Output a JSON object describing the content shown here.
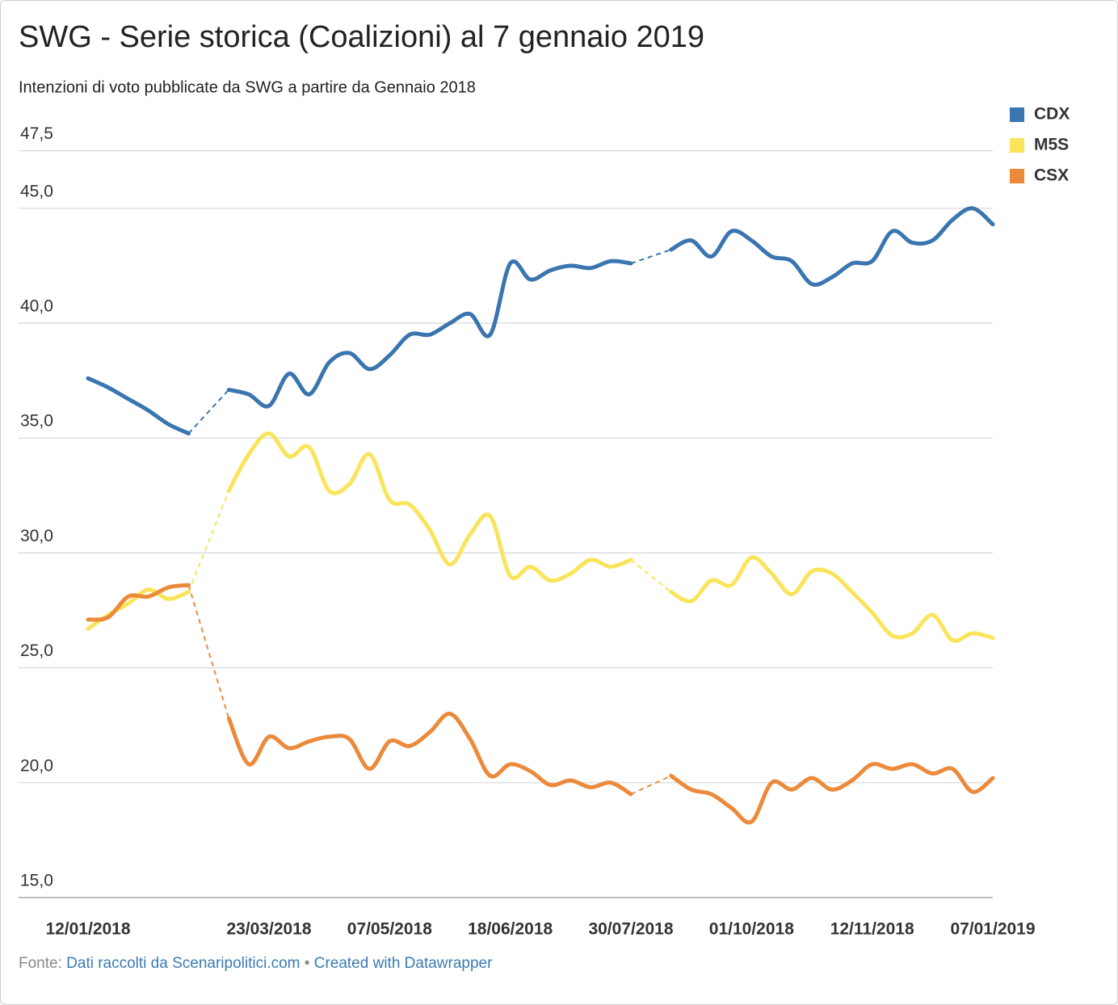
{
  "chart_data": {
    "type": "line",
    "title": "SWG - Serie storica (Coalizioni) al 7 gennaio 2019",
    "subtitle": "Intenzioni di voto pubblicate da SWG a partire da Gennaio 2018",
    "categories": [
      "12/01/2018",
      null,
      null,
      null,
      null,
      null,
      null,
      null,
      null,
      "23/03/2018",
      null,
      null,
      null,
      null,
      null,
      "07/05/2018",
      null,
      null,
      null,
      null,
      null,
      "18/06/2018",
      null,
      null,
      null,
      null,
      null,
      "30/07/2018",
      null,
      null,
      null,
      null,
      null,
      "01/10/2018",
      null,
      null,
      null,
      null,
      null,
      "12/11/2018",
      null,
      null,
      null,
      null,
      null,
      "07/01/2019"
    ],
    "series": [
      {
        "name": "CDX",
        "color": "#3a75b0",
        "values": [
          37.6,
          37.2,
          36.7,
          36.2,
          35.6,
          35.2,
          null,
          37.1,
          36.9,
          36.4,
          37.8,
          36.9,
          38.3,
          38.7,
          38.0,
          38.6,
          39.5,
          39.5,
          40.0,
          40.4,
          39.5,
          42.6,
          41.9,
          42.3,
          42.5,
          42.4,
          42.7,
          42.6,
          null,
          43.2,
          43.6,
          42.9,
          44.0,
          43.6,
          42.9,
          42.7,
          41.7,
          42.0,
          42.6,
          42.7,
          44.0,
          43.5,
          43.6,
          44.5,
          45.0,
          44.3
        ]
      },
      {
        "name": "M5S",
        "color": "#f9e45b",
        "values": [
          26.7,
          27.3,
          27.8,
          28.4,
          28.0,
          28.3,
          null,
          32.7,
          34.3,
          35.2,
          34.2,
          34.6,
          32.7,
          33.0,
          34.3,
          32.3,
          32.1,
          31.0,
          29.5,
          30.8,
          31.6,
          29.0,
          29.4,
          28.8,
          29.1,
          29.7,
          29.4,
          29.7,
          null,
          28.3,
          27.9,
          28.8,
          28.6,
          29.8,
          29.1,
          28.2,
          29.2,
          29.1,
          28.3,
          27.4,
          26.4,
          26.5,
          27.3,
          26.2,
          26.5,
          26.3
        ]
      },
      {
        "name": "CSX",
        "color": "#ec8a3c",
        "values": [
          27.1,
          27.2,
          28.1,
          28.1,
          28.5,
          28.6,
          null,
          22.8,
          20.8,
          22.0,
          21.5,
          21.8,
          22.0,
          21.9,
          20.6,
          21.8,
          21.6,
          22.2,
          23.0,
          21.9,
          20.3,
          20.8,
          20.5,
          19.9,
          20.1,
          19.8,
          20.0,
          19.5,
          null,
          20.3,
          19.7,
          19.5,
          18.9,
          18.3,
          20.0,
          19.7,
          20.2,
          19.7,
          20.1,
          20.8,
          20.6,
          20.8,
          20.4,
          20.6,
          19.6,
          20.2
        ]
      }
    ],
    "ylim": [
      15,
      47.5
    ],
    "yticks": [
      {
        "value": 15,
        "label": "15,0"
      },
      {
        "value": 20,
        "label": "20,0"
      },
      {
        "value": 25,
        "label": "25,0"
      },
      {
        "value": 30,
        "label": "30,0"
      },
      {
        "value": 35,
        "label": "35,0"
      },
      {
        "value": 40,
        "label": "40,0"
      },
      {
        "value": 45,
        "label": "45,0"
      },
      {
        "value": 47.5,
        "label": "47,5"
      }
    ],
    "grid": true,
    "legend": "top-right",
    "source": {
      "label": "Fonte:",
      "text": "Dati raccolti da Scenaripolitici.com",
      "separator": "•",
      "credit": "Created with Datawrapper"
    }
  }
}
